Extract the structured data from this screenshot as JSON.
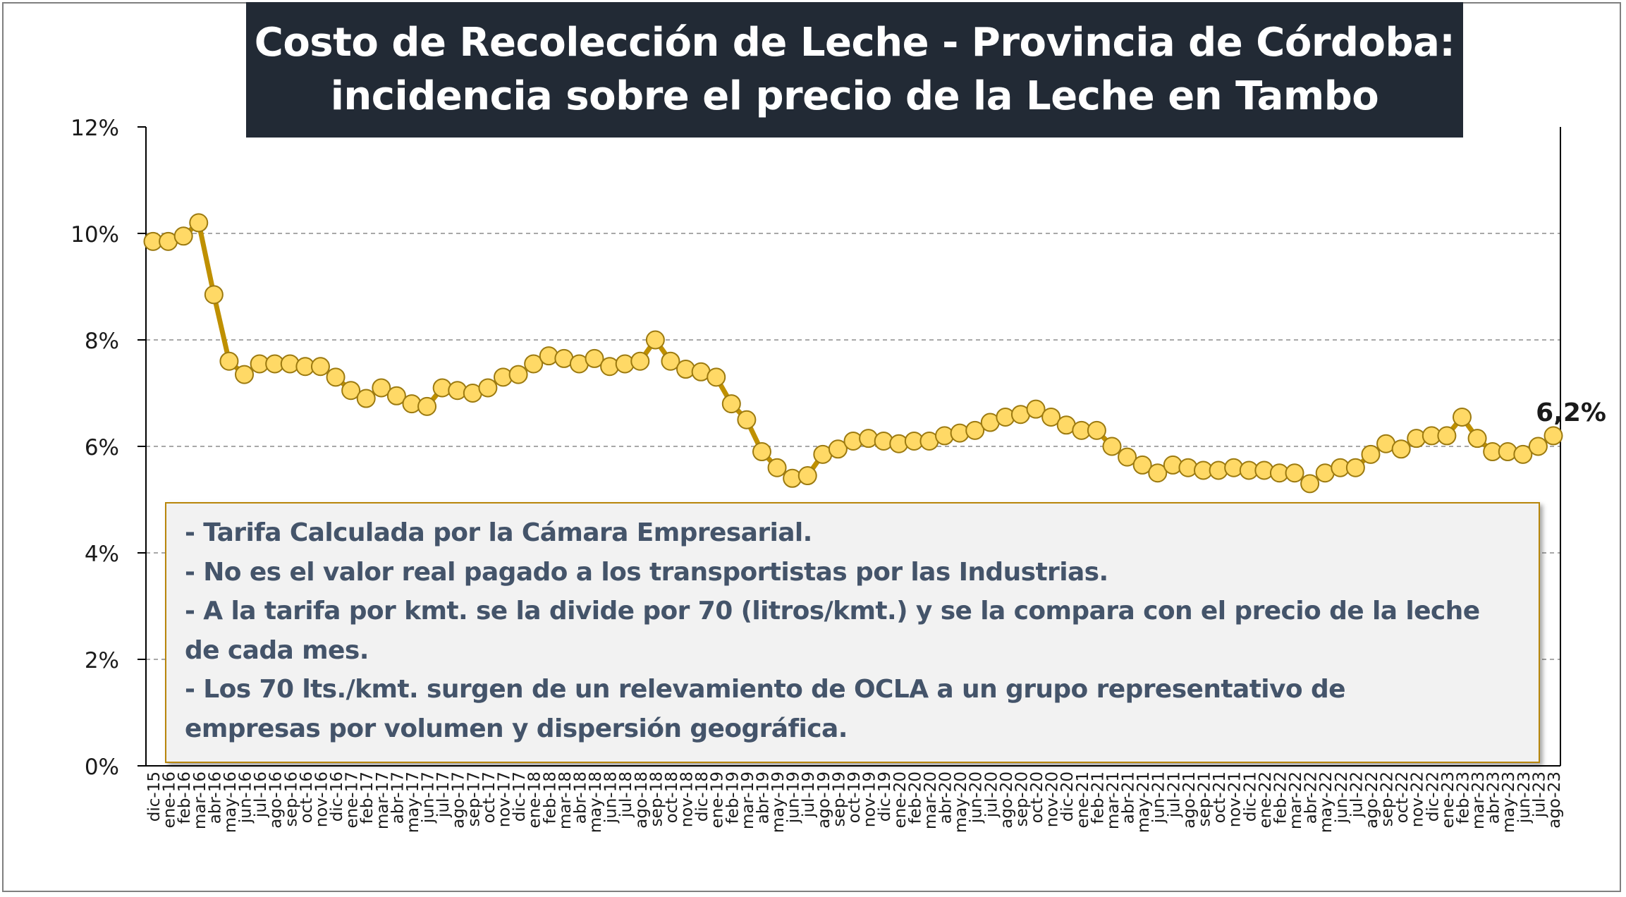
{
  "title": {
    "line1": "Costo de Recolección de Leche - Provincia de Córdoba:",
    "line2": "incidencia sobre el precio de la Leche en Tambo"
  },
  "notes": [
    "- Tarifa Calculada por la Cámara Empresarial.",
    "- No es el valor real pagado a los transportistas por las Industrias.",
    "- A la tarifa por kmt. se la divide por 70 (litros/kmt.) y se la compara con el precio de la leche",
    "de cada mes.",
    "- Los 70 lts./kmt. surgen de un relevamiento de OCLA a un grupo representativo de",
    "empresas por volumen y dispersión geográfica."
  ],
  "colors": {
    "line": "#bf9000",
    "marker_fill": "#ffd966",
    "marker_stroke": "#9c7a10",
    "title_bg": "#222a35",
    "note_text": "#44546a"
  },
  "chart_data": {
    "type": "line",
    "ylim": [
      0,
      12
    ],
    "y_ticks": [
      "0%",
      "2%",
      "4%",
      "6%",
      "8%",
      "10%",
      "12%"
    ],
    "grid": "horizontal dashed",
    "last_label": "6,2%",
    "categories": [
      "dic-15",
      "ene-16",
      "feb-16",
      "mar-16",
      "abr-16",
      "may-16",
      "jun-16",
      "jul-16",
      "ago-16",
      "sep-16",
      "oct-16",
      "nov-16",
      "dic-16",
      "ene-17",
      "feb-17",
      "mar-17",
      "abr-17",
      "may-17",
      "jun-17",
      "jul-17",
      "ago-17",
      "sep-17",
      "oct-17",
      "nov-17",
      "dic-17",
      "ene-18",
      "feb-18",
      "mar-18",
      "abr-18",
      "may-18",
      "jun-18",
      "jul-18",
      "ago-18",
      "sep-18",
      "oct-18",
      "nov-18",
      "dic-18",
      "ene-19",
      "feb-19",
      "mar-19",
      "abr-19",
      "may-19",
      "jun-19",
      "jul-19",
      "ago-19",
      "sep-19",
      "oct-19",
      "nov-19",
      "dic-19",
      "ene-20",
      "feb-20",
      "mar-20",
      "abr-20",
      "may-20",
      "jun-20",
      "jul-20",
      "ago-20",
      "sep-20",
      "oct-20",
      "nov-20",
      "dic-20",
      "ene-21",
      "feb-21",
      "mar-21",
      "abr-21",
      "may-21",
      "jun-21",
      "jul-21",
      "ago-21",
      "sep-21",
      "oct-21",
      "nov-21",
      "dic-21",
      "ene-22",
      "feb-22",
      "mar-22",
      "abr-22",
      "may-22",
      "jun-22",
      "jul-22",
      "ago-22",
      "sep-22",
      "oct-22",
      "nov-22",
      "dic-22",
      "ene-23",
      "feb-23",
      "mar-23",
      "abr-23",
      "may-23",
      "jun-23",
      "jul-23",
      "ago-23"
    ],
    "values": [
      9.85,
      9.85,
      9.95,
      10.2,
      8.85,
      7.6,
      7.35,
      7.55,
      7.55,
      7.55,
      7.5,
      7.5,
      7.3,
      7.05,
      6.9,
      7.1,
      6.95,
      6.8,
      6.75,
      7.1,
      7.05,
      7.0,
      7.1,
      7.3,
      7.35,
      7.55,
      7.7,
      7.65,
      7.55,
      7.65,
      7.5,
      7.55,
      7.6,
      8.0,
      7.6,
      7.45,
      7.4,
      7.3,
      6.8,
      6.5,
      5.9,
      5.6,
      5.4,
      5.45,
      5.85,
      5.95,
      6.1,
      6.15,
      6.1,
      6.05,
      6.1,
      6.1,
      6.2,
      6.25,
      6.3,
      6.45,
      6.55,
      6.6,
      6.7,
      6.55,
      6.4,
      6.3,
      6.3,
      6.0,
      5.8,
      5.65,
      5.5,
      5.65,
      5.6,
      5.55,
      5.55,
      5.6,
      5.55,
      5.55,
      5.5,
      5.5,
      5.3,
      5.5,
      5.6,
      5.6,
      5.85,
      6.05,
      5.95,
      6.15,
      6.2,
      6.2,
      6.55,
      6.15,
      5.9,
      5.9,
      5.85,
      6.0,
      6.2
    ]
  }
}
